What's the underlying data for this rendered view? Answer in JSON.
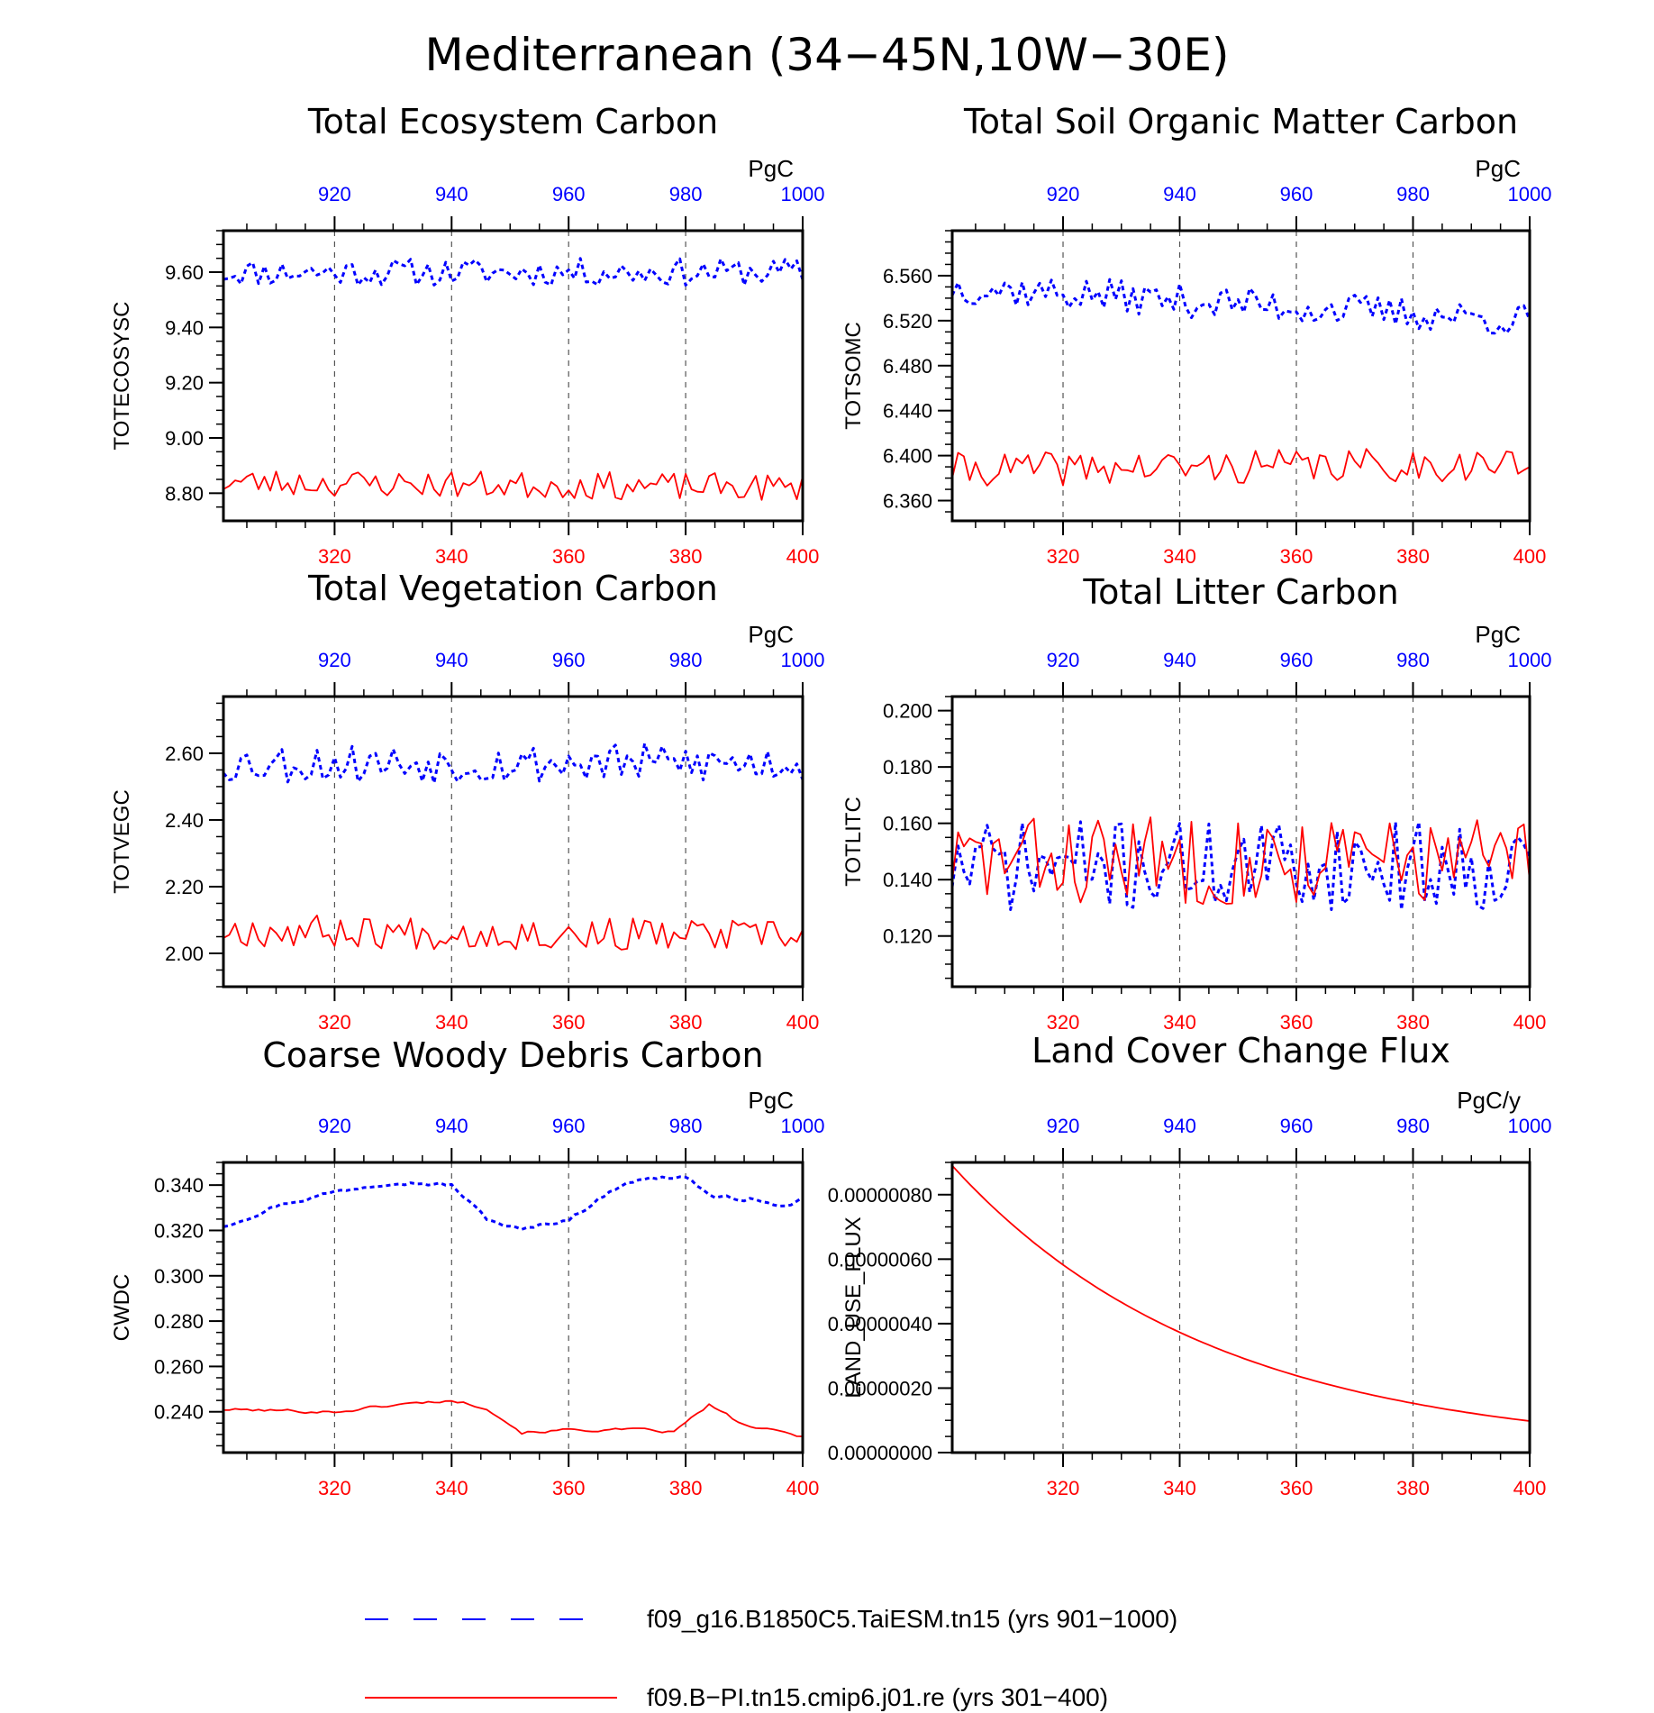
{
  "figure": {
    "title": "Mediterranean (34−45N,10W−30E)",
    "bottom_axis_ticks": [
      "320",
      "340",
      "360",
      "380",
      "400"
    ],
    "top_axis_ticks": [
      "920",
      "940",
      "960",
      "980",
      "1000"
    ],
    "colors": {
      "blue_case": "#0000ff",
      "red_case": "#ff0000",
      "frame": "#000000",
      "grid": "#555555"
    }
  },
  "legend": {
    "items": [
      {
        "label": "f09_g16.B1850C5.TaiESM.tn15 (yrs 901−1000)",
        "color": "#0000ff",
        "style": "dashed"
      },
      {
        "label": "f09.B−PI.tn15.cmip6.j01.re (yrs 301−400)",
        "color": "#ff0000",
        "style": "solid"
      }
    ]
  },
  "chart_data": [
    {
      "type": "line",
      "title": "Total Ecosystem Carbon",
      "ylabel": "TOTECOSYSC",
      "unit": "PgC",
      "x_bottom": [
        301,
        400
      ],
      "x_top": [
        901,
        1000
      ],
      "ylim": [
        8.7,
        9.75
      ],
      "yticks": [
        8.8,
        9.0,
        9.2,
        9.4,
        9.6
      ],
      "ytick_labels": [
        "8.80",
        "9.00",
        "9.20",
        "9.40",
        "9.60"
      ],
      "series": [
        {
          "color": "#0000ff",
          "style": "dashed",
          "base": 9.6,
          "amp": 0.05,
          "trend": 0.0,
          "seed": 11
        },
        {
          "color": "#ff0000",
          "style": "solid",
          "base": 8.83,
          "amp": 0.05,
          "trend": -0.02,
          "seed": 23
        }
      ]
    },
    {
      "type": "line",
      "title": "Total Soil Organic Matter Carbon",
      "ylabel": "TOTSOMC",
      "unit": "PgC",
      "x_bottom": [
        301,
        400
      ],
      "x_top": [
        901,
        1000
      ],
      "ylim": [
        6.342,
        6.6
      ],
      "yticks": [
        6.36,
        6.4,
        6.44,
        6.48,
        6.52,
        6.56
      ],
      "ytick_labels": [
        "6.360",
        "6.400",
        "6.440",
        "6.480",
        "6.520",
        "6.560"
      ],
      "series": [
        {
          "color": "#0000ff",
          "style": "dashed",
          "base": 6.535,
          "amp": 0.015,
          "trend": -0.03,
          "seed": 37
        },
        {
          "color": "#ff0000",
          "style": "solid",
          "base": 6.39,
          "amp": 0.015,
          "trend": 0.005,
          "seed": 41
        }
      ]
    },
    {
      "type": "line",
      "title": "Total Vegetation Carbon",
      "ylabel": "TOTVEGC",
      "unit": "PgC",
      "x_bottom": [
        301,
        400
      ],
      "x_top": [
        901,
        1000
      ],
      "ylim": [
        1.9,
        2.77
      ],
      "yticks": [
        2.0,
        2.2,
        2.4,
        2.6
      ],
      "ytick_labels": [
        "2.00",
        "2.20",
        "2.40",
        "2.60"
      ],
      "series": [
        {
          "color": "#0000ff",
          "style": "dashed",
          "base": 2.57,
          "amp": 0.06,
          "trend": 0.0,
          "seed": 53
        },
        {
          "color": "#ff0000",
          "style": "solid",
          "base": 2.06,
          "amp": 0.05,
          "trend": -0.02,
          "seed": 67
        }
      ]
    },
    {
      "type": "line",
      "title": "Total Litter Carbon",
      "ylabel": "TOTLITC",
      "unit": "PgC",
      "x_bottom": [
        301,
        400
      ],
      "x_top": [
        901,
        1000
      ],
      "ylim": [
        0.102,
        0.205
      ],
      "yticks": [
        0.12,
        0.14,
        0.16,
        0.18,
        0.2
      ],
      "ytick_labels": [
        "0.120",
        "0.140",
        "0.160",
        "0.180",
        "0.200"
      ],
      "series": [
        {
          "color": "#0000ff",
          "style": "dashed",
          "base": 0.145,
          "amp": 0.016,
          "trend": 0.0,
          "seed": 71
        },
        {
          "color": "#ff0000",
          "style": "solid",
          "base": 0.147,
          "amp": 0.016,
          "trend": 0.0,
          "seed": 83
        }
      ]
    },
    {
      "type": "line",
      "title": "Coarse Woody Debris Carbon",
      "ylabel": "CWDC",
      "unit": "PgC",
      "x_bottom": [
        301,
        400
      ],
      "x_top": [
        901,
        1000
      ],
      "ylim": [
        0.222,
        0.35
      ],
      "yticks": [
        0.24,
        0.26,
        0.28,
        0.3,
        0.32,
        0.34
      ],
      "ytick_labels": [
        "0.240",
        "0.260",
        "0.280",
        "0.300",
        "0.320",
        "0.340"
      ],
      "series": [
        {
          "color": "#0000ff",
          "style": "dashed",
          "knots": [
            [
              301,
              0.322
            ],
            [
              310,
              0.331
            ],
            [
              320,
              0.337
            ],
            [
              330,
              0.342
            ],
            [
              340,
              0.34
            ],
            [
              346,
              0.325
            ],
            [
              352,
              0.32
            ],
            [
              360,
              0.325
            ],
            [
              370,
              0.342
            ],
            [
              380,
              0.344
            ],
            [
              385,
              0.334
            ],
            [
              392,
              0.334
            ],
            [
              396,
              0.33
            ],
            [
              400,
              0.334
            ]
          ],
          "amp": 0.002,
          "seed": 97
        },
        {
          "color": "#ff0000",
          "style": "solid",
          "knots": [
            [
              301,
              0.241
            ],
            [
              320,
              0.24
            ],
            [
              330,
              0.243
            ],
            [
              340,
              0.245
            ],
            [
              346,
              0.242
            ],
            [
              352,
              0.231
            ],
            [
              360,
              0.232
            ],
            [
              370,
              0.232
            ],
            [
              378,
              0.231
            ],
            [
              384,
              0.243
            ],
            [
              390,
              0.234
            ],
            [
              400,
              0.229
            ]
          ],
          "amp": 0.0015,
          "seed": 101
        }
      ]
    },
    {
      "type": "line",
      "title": "Land Cover Change Flux",
      "ylabel": "LAND_USE_FLUX",
      "unit": "PgC/y",
      "x_bottom": [
        301,
        400
      ],
      "x_top": [
        901,
        1000
      ],
      "ylim": [
        0.0,
        9e-07
      ],
      "yticks": [
        0.0,
        2e-07,
        4e-07,
        6e-07,
        8e-07
      ],
      "ytick_labels": [
        "0.00000000",
        "0.00000020",
        "0.00000040",
        "0.00000060",
        "0.00000080"
      ],
      "series": [
        {
          "color": "#ff0000",
          "style": "solid",
          "exp_decay": {
            "y0": 8.9e-07,
            "rate": 0.0223
          }
        }
      ]
    }
  ]
}
